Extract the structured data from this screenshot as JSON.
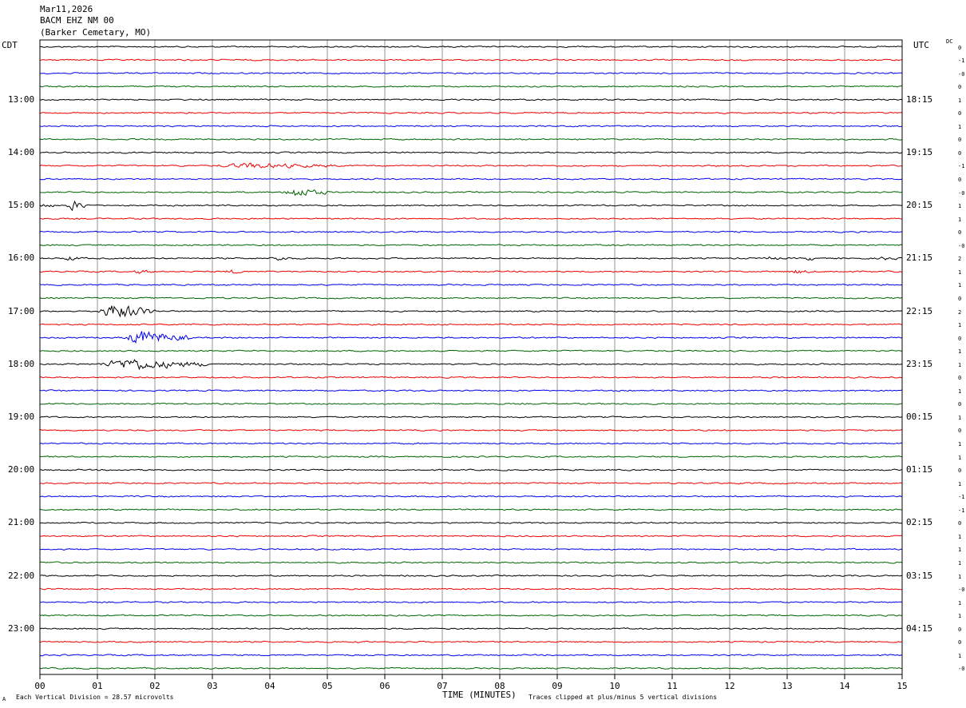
{
  "header": {
    "date": "Mar11,2026",
    "station": "BACM EHZ NM 00",
    "location": "(Barker Cemetary, MO)"
  },
  "timezones": {
    "left": "CDT",
    "right": "UTC",
    "dc_label": "DC"
  },
  "footer": {
    "scale": "Each Vertical Division =   28.57 microvolts",
    "clip": "Traces clipped at plus/minus 5 vertical divisions",
    "mark": "A"
  },
  "chart_data": {
    "type": "line",
    "xlabel": "TIME (MINUTES)",
    "xlim": [
      0,
      15
    ],
    "x_ticks": [
      "00",
      "01",
      "02",
      "03",
      "04",
      "05",
      "06",
      "07",
      "08",
      "09",
      "10",
      "11",
      "12",
      "13",
      "14",
      "15"
    ],
    "trace_colors": [
      "#000000",
      "#ee0000",
      "#0000ee",
      "#006400"
    ],
    "left_hour_labels": [
      {
        "row": 4,
        "label": "13:00"
      },
      {
        "row": 8,
        "label": "14:00"
      },
      {
        "row": 12,
        "label": "15:00"
      },
      {
        "row": 16,
        "label": "16:00"
      },
      {
        "row": 20,
        "label": "17:00"
      },
      {
        "row": 24,
        "label": "18:00"
      },
      {
        "row": 28,
        "label": "19:00"
      },
      {
        "row": 32,
        "label": "20:00"
      },
      {
        "row": 36,
        "label": "21:00"
      },
      {
        "row": 40,
        "label": "22:00"
      },
      {
        "row": 44,
        "label": "23:00"
      }
    ],
    "right_hour_labels": [
      {
        "row": 4,
        "label": "18:15"
      },
      {
        "row": 8,
        "label": "19:15"
      },
      {
        "row": 12,
        "label": "20:15"
      },
      {
        "row": 16,
        "label": "21:15"
      },
      {
        "row": 20,
        "label": "22:15"
      },
      {
        "row": 24,
        "label": "23:15"
      },
      {
        "row": 28,
        "label": "00:15"
      },
      {
        "row": 32,
        "label": "01:15"
      },
      {
        "row": 36,
        "label": "02:15"
      },
      {
        "row": 40,
        "label": "03:15"
      },
      {
        "row": 44,
        "label": "04:15"
      }
    ],
    "dc_offsets": [
      "0",
      "-1",
      "-0",
      "0",
      "1",
      "0",
      "1",
      "0",
      "0",
      "-1",
      "0",
      "-0",
      "1",
      "1",
      "0",
      "-0",
      "2",
      "1",
      "1",
      "0",
      "2",
      "1",
      "0",
      "1",
      "1",
      "0",
      "1",
      "0",
      "1",
      "0",
      "1",
      "1",
      "0",
      "1",
      "-1",
      "-1",
      "0",
      "1",
      "1",
      "1",
      "1",
      "-0",
      "1",
      "1",
      "0",
      "0",
      "1",
      "-0"
    ],
    "events": [
      {
        "row": 9,
        "start": 3.0,
        "end": 5.2,
        "amplitude": 1.4
      },
      {
        "row": 11,
        "start": 4.2,
        "end": 5.0,
        "amplitude": 3.0
      },
      {
        "row": 12,
        "start": 0.0,
        "end": 0.25,
        "amplitude": 1.2
      },
      {
        "row": 12,
        "start": 0.45,
        "end": 0.85,
        "amplitude": 3.0
      },
      {
        "row": 16,
        "start": 0.4,
        "end": 0.8,
        "amplitude": 1.0
      },
      {
        "row": 16,
        "start": 4.0,
        "end": 4.4,
        "amplitude": 1.2
      },
      {
        "row": 16,
        "start": 12.6,
        "end": 12.9,
        "amplitude": 1.0
      },
      {
        "row": 16,
        "start": 13.3,
        "end": 13.6,
        "amplitude": 1.0
      },
      {
        "row": 16,
        "start": 14.6,
        "end": 14.9,
        "amplitude": 1.0
      },
      {
        "row": 17,
        "start": 1.6,
        "end": 2.0,
        "amplitude": 1.0
      },
      {
        "row": 17,
        "start": 3.2,
        "end": 3.6,
        "amplitude": 1.0
      },
      {
        "row": 17,
        "start": 13.0,
        "end": 13.5,
        "amplitude": 1.0
      },
      {
        "row": 20,
        "start": 1.0,
        "end": 2.0,
        "amplitude": 5.0
      },
      {
        "row": 22,
        "start": 1.4,
        "end": 2.6,
        "amplitude": 4.5
      },
      {
        "row": 24,
        "start": 1.0,
        "end": 2.9,
        "amplitude": 3.5
      }
    ]
  }
}
